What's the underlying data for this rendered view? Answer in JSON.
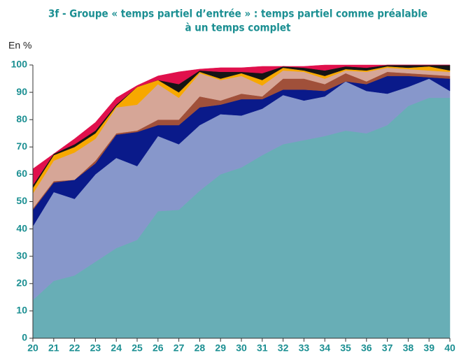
{
  "chart_data": {
    "type": "stacked-area",
    "title": [
      "3f - Groupe « temps partiel d’entrée » : temps partiel comme préalable",
      "à un temps complet"
    ],
    "y_label": "En %",
    "x": [
      20,
      21,
      22,
      23,
      24,
      25,
      26,
      27,
      28,
      29,
      30,
      31,
      32,
      33,
      34,
      35,
      36,
      37,
      38,
      39,
      40
    ],
    "xlim": [
      20,
      40
    ],
    "xticks": [
      20,
      21,
      22,
      23,
      24,
      25,
      26,
      27,
      28,
      29,
      30,
      31,
      32,
      33,
      34,
      35,
      36,
      37,
      38,
      39,
      40
    ],
    "ylim": [
      0,
      100
    ],
    "yticks": [
      0,
      10,
      20,
      30,
      40,
      50,
      60,
      70,
      80,
      90,
      100
    ],
    "series": [
      {
        "color": "#68aeb6",
        "values": [
          14,
          21,
          23,
          28,
          33,
          36,
          46.5,
          47,
          54,
          60,
          62.5,
          67,
          71,
          72.5,
          74,
          76,
          75,
          78,
          85,
          88,
          88
        ]
      },
      {
        "color": "#8797cb",
        "values": [
          27,
          32.5,
          28,
          32,
          33,
          27,
          27.5,
          24,
          24,
          22,
          19,
          17,
          18,
          14.5,
          14.5,
          18,
          15.5,
          11.5,
          7,
          7,
          2.5
        ]
      },
      {
        "color": "#0a1a8a",
        "values": [
          6,
          3.5,
          7,
          4,
          8.5,
          12.5,
          4,
          7,
          6.5,
          3.5,
          6,
          3.5,
          2,
          4,
          2,
          0,
          2.5,
          6.5,
          4,
          0.5,
          4.5
        ]
      },
      {
        "color": "#a0503a",
        "values": [
          0.5,
          0.5,
          0,
          1,
          0.5,
          0.5,
          2,
          2,
          4,
          1.5,
          2,
          1,
          4,
          4,
          2.5,
          3,
          1,
          1.5,
          1,
          1,
          1
        ]
      },
      {
        "color": "#d6a697",
        "values": [
          5.5,
          7.5,
          10,
          8,
          9.5,
          9.5,
          13,
          8,
          8.5,
          7.5,
          6.5,
          4,
          3,
          2.5,
          2,
          1,
          3.5,
          1.5,
          1.5,
          1.5,
          1.5
        ]
      },
      {
        "color": "#f7a800",
        "values": [
          2,
          2,
          2,
          2,
          0.5,
          6.5,
          1.5,
          2,
          0.5,
          0.5,
          1,
          2,
          1,
          0.5,
          1,
          0.5,
          0.5,
          0.5,
          0.5,
          1.5,
          0.5
        ]
      },
      {
        "color": "#151515",
        "values": [
          1,
          0.5,
          1,
          1,
          0.5,
          0,
          0,
          3,
          0.5,
          2.5,
          0.5,
          2.5,
          0.5,
          1,
          2,
          1,
          1,
          0.5,
          1,
          0.5,
          2
        ]
      },
      {
        "color": "#e0104c",
        "values": [
          6,
          0,
          2,
          3,
          2.5,
          0.5,
          1.5,
          4.5,
          0.5,
          1.5,
          1.5,
          2.5,
          0,
          0.5,
          2,
          0.5,
          1,
          0,
          0,
          0,
          0
        ]
      }
    ]
  }
}
